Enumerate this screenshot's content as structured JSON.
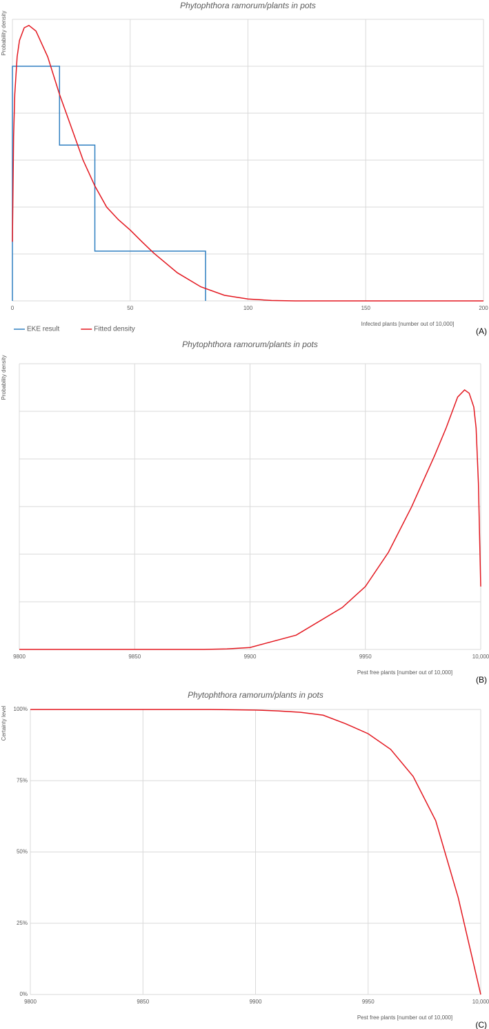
{
  "chart_data": [
    {
      "type": "line",
      "title": "Phytophthora ramorum/plants in pots",
      "y_label": "Probability density",
      "x_label": "Infected plants [number out of 10,000]",
      "panel_label": "(A)",
      "xlim": [
        0,
        200
      ],
      "xticks": [
        0,
        50,
        100,
        150,
        200
      ],
      "ylim": [
        0,
        6
      ],
      "yticks": [
        0,
        1,
        2,
        3,
        4,
        5,
        6
      ],
      "ytick_labels": false,
      "grid": true,
      "legend": "bottom-left",
      "series": [
        {
          "name": "EKE result",
          "color": "#2f7fc1",
          "x": [
            0,
            0,
            20,
            20,
            35,
            35,
            82,
            82
          ],
          "values": [
            0,
            5,
            5,
            3.32,
            3.32,
            1.06,
            1.06,
            0
          ]
        },
        {
          "name": "Fitted density",
          "color": "#e3161e",
          "x": [
            0,
            0.5,
            1,
            2,
            3,
            5,
            7,
            10,
            15,
            20,
            25,
            30,
            35,
            40,
            45,
            50,
            55,
            60,
            70,
            80,
            90,
            100,
            110,
            120,
            150,
            200
          ],
          "values": [
            1.26,
            3.5,
            4.4,
            5.2,
            5.55,
            5.82,
            5.87,
            5.75,
            5.2,
            4.4,
            3.7,
            3.0,
            2.45,
            2.0,
            1.73,
            1.51,
            1.26,
            1.02,
            0.6,
            0.3,
            0.12,
            0.04,
            0.01,
            0,
            0,
            0
          ]
        }
      ]
    },
    {
      "type": "line",
      "title": "Phytophthora ramorum/plants in pots",
      "y_label": "Probability density",
      "x_label": "Pest free plants [number out of 10,000]",
      "panel_label": "(B)",
      "xlim": [
        9800,
        10000
      ],
      "xticks": [
        9800,
        9850,
        9900,
        9950,
        {
          "value": 10000,
          "label": "10,000"
        }
      ],
      "ylim": [
        0,
        6
      ],
      "yticks": [
        0,
        1,
        2,
        3,
        4,
        5,
        6
      ],
      "ytick_labels": false,
      "grid": true,
      "series": [
        {
          "color": "#e3161e",
          "x": [
            9800,
            9850,
            9880,
            9890,
            9900,
            9920,
            9940,
            9950,
            9960,
            9970,
            9980,
            9985,
            9990,
            9993,
            9995,
            9997,
            9998,
            9999,
            10000
          ],
          "values": [
            0,
            0,
            0,
            0.01,
            0.04,
            0.3,
            0.88,
            1.32,
            2.04,
            2.99,
            4.07,
            4.65,
            5.3,
            5.45,
            5.38,
            5.09,
            4.65,
            3.49,
            1.32
          ]
        }
      ]
    },
    {
      "type": "line",
      "title": "Phytophthora ramorum/plants in pots",
      "y_label": "Certainty level",
      "x_label": "Pest free plants [number out of 10,000]",
      "panel_label": "(C)",
      "xlim": [
        9800,
        10000
      ],
      "xticks": [
        9800,
        9850,
        9900,
        9950,
        {
          "value": 10000,
          "label": "10,000"
        }
      ],
      "ylim": [
        0,
        100
      ],
      "yticks": [
        {
          "value": 0,
          "label": "0%"
        },
        {
          "value": 25,
          "label": "25%"
        },
        {
          "value": 50,
          "label": "50%"
        },
        {
          "value": 75,
          "label": "75%"
        },
        {
          "value": 100,
          "label": "100%"
        }
      ],
      "ytick_labels": true,
      "grid": true,
      "series": [
        {
          "color": "#e3161e",
          "x": [
            9800,
            9850,
            9880,
            9900,
            9910,
            9920,
            9930,
            9940,
            9950,
            9960,
            9970,
            9980,
            9990,
            9995,
            10000
          ],
          "values": [
            100,
            100,
            100,
            99.8,
            99.5,
            99,
            98,
            95,
            91.5,
            86,
            76.5,
            61,
            34,
            17,
            0
          ]
        }
      ]
    }
  ]
}
